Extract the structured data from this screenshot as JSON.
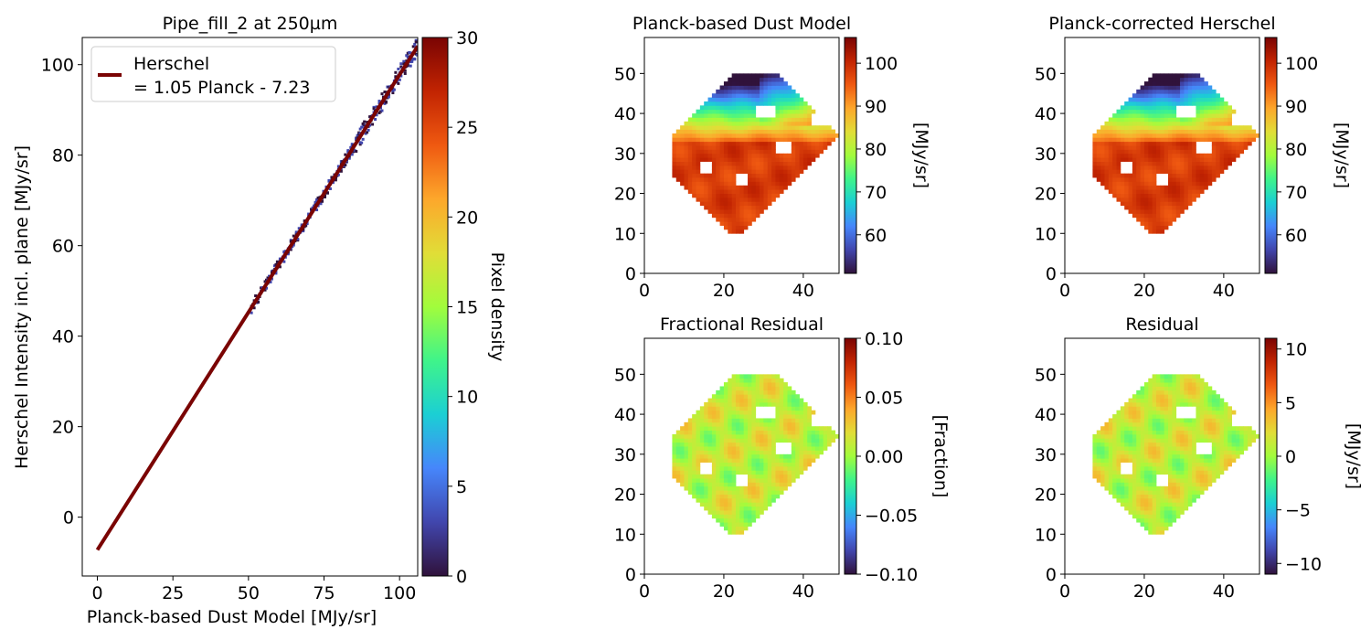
{
  "colormap_stops": [
    "#30123b",
    "#4146ad",
    "#4686fb",
    "#1bcfd4",
    "#3ff48a",
    "#a2fc3c",
    "#e1dd37",
    "#fda72b",
    "#ef5911",
    "#c22402",
    "#7a0403"
  ],
  "chart_data": [
    {
      "id": "scatter",
      "type": "scatter",
      "title": "Pipe_fill_2 at 250µm",
      "xlabel": "Planck-based Dust Model [MJy/sr]",
      "ylabel": "Herschel Intensity incl. plane [MJy/sr]",
      "xlim": [
        -5,
        106
      ],
      "ylim": [
        -13,
        106
      ],
      "xticks": [
        0,
        25,
        50,
        75,
        100
      ],
      "yticks": [
        0,
        20,
        40,
        60,
        80,
        100
      ],
      "fit": {
        "slope": 1.05,
        "intercept": -7.23,
        "x_range": [
          0,
          106
        ],
        "color": "#7a0403"
      },
      "legend": {
        "line1": "Herschel",
        "line2": "= 1.05 Planck - 7.23",
        "position": "upper-left"
      },
      "density": {
        "x_range": [
          51,
          106
        ],
        "scatter": 1.2
      },
      "colorbar": {
        "label": "Pixel density",
        "range": [
          0,
          30
        ],
        "ticks": [
          0,
          5,
          10,
          15,
          20,
          25,
          30
        ]
      }
    },
    {
      "id": "planck_model",
      "type": "heatmap",
      "title": "Planck-based Dust Model",
      "xlim": [
        0,
        49
      ],
      "ylim": [
        0,
        59
      ],
      "xticks": [
        0,
        20,
        40
      ],
      "yticks": [
        0,
        10,
        20,
        30,
        40,
        50
      ],
      "colorbar": {
        "label": "[MJy/sr]",
        "range": [
          51,
          106
        ],
        "ticks": [
          60,
          70,
          80,
          90,
          100
        ]
      }
    },
    {
      "id": "corrected_herschel",
      "type": "heatmap",
      "title": "Planck-corrected Herschel",
      "xlim": [
        0,
        49
      ],
      "ylim": [
        0,
        59
      ],
      "xticks": [
        0,
        20,
        40
      ],
      "yticks": [
        0,
        10,
        20,
        30,
        40,
        50
      ],
      "colorbar": {
        "label": "[MJy/sr]",
        "range": [
          51,
          106
        ],
        "ticks": [
          60,
          70,
          80,
          90,
          100
        ]
      }
    },
    {
      "id": "fractional_residual",
      "type": "heatmap",
      "title": "Fractional Residual",
      "xlim": [
        0,
        49
      ],
      "ylim": [
        0,
        59
      ],
      "xticks": [
        0,
        20,
        40
      ],
      "yticks": [
        0,
        10,
        20,
        30,
        40,
        50
      ],
      "colorbar": {
        "label": "[Fraction]",
        "range": [
          -0.1,
          0.1
        ],
        "ticks": [
          -0.1,
          -0.05,
          0.0,
          0.05,
          0.1
        ],
        "tick_labels": [
          "−0.10",
          "−0.05",
          "0.00",
          "0.05",
          "0.10"
        ]
      }
    },
    {
      "id": "residual",
      "type": "heatmap",
      "title": "Residual",
      "xlim": [
        0,
        49
      ],
      "ylim": [
        0,
        59
      ],
      "xticks": [
        0,
        20,
        40
      ],
      "yticks": [
        0,
        10,
        20,
        30,
        40,
        50
      ],
      "colorbar": {
        "label": "[MJy/sr]",
        "range": [
          -11,
          11
        ],
        "ticks": [
          -10,
          -5,
          0,
          5,
          10
        ],
        "tick_labels": [
          "−10",
          "−5",
          "0",
          "5",
          "10"
        ]
      }
    }
  ]
}
